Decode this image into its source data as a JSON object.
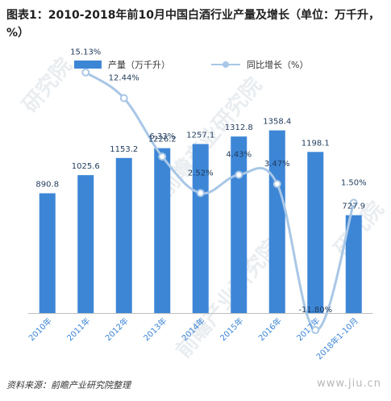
{
  "title": "图表1：2010-2018年前10月中国白酒行业产量及增长（单位：万千升，%）",
  "source": "资料来源：前瞻产业研究院整理",
  "watermark": {
    "brand": "前瞻产业研究院",
    "short": "研究院",
    "url": "www.jiu.cn"
  },
  "chart_data": {
    "type": "bar",
    "categories": [
      "2010年",
      "2011年",
      "2012年",
      "2013年",
      "2014年",
      "2015年",
      "2016年",
      "2017年",
      "2018年1-10月"
    ],
    "series": [
      {
        "name": "产量（万千升）",
        "type": "bar",
        "axis": "left",
        "values": [
          890.8,
          1025.6,
          1153.2,
          1226.2,
          1257.1,
          1312.8,
          1358.4,
          1198.1,
          727.9
        ],
        "labels": [
          "890.8",
          "1025.6",
          "1153.2",
          "1226.2",
          "1257.1",
          "1312.8",
          "1358.4",
          "1198.1",
          "727.9"
        ],
        "color": "#3d86d6"
      },
      {
        "name": "同比增长（%）",
        "type": "line",
        "axis": "right",
        "smooth": true,
        "values": [
          null,
          15.13,
          12.44,
          6.33,
          2.52,
          4.43,
          3.47,
          -11.8,
          1.5
        ],
        "labels": [
          "",
          "15.13%",
          "12.44%",
          "6.33%",
          "2.52%",
          "4.43%",
          "3.47%",
          "-11.80%",
          "1.50%"
        ],
        "color": "#a9c7e6"
      }
    ],
    "ylim_left": [
      0,
      1500
    ],
    "ylim_right": [
      -15,
      20
    ],
    "grid": false,
    "legend_position": "top-center"
  }
}
